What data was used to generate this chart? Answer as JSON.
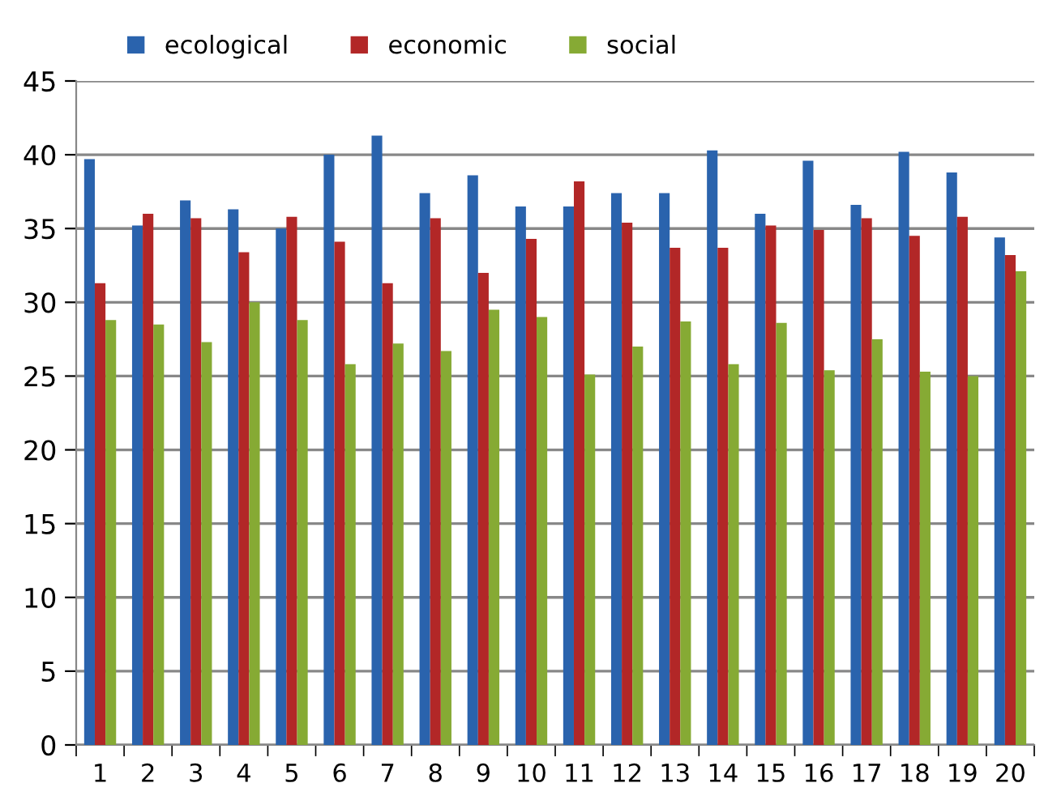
{
  "chart_data": {
    "type": "bar",
    "categories": [
      "1",
      "2",
      "3",
      "4",
      "5",
      "6",
      "7",
      "8",
      "9",
      "10",
      "11",
      "12",
      "13",
      "14",
      "15",
      "16",
      "17",
      "18",
      "19",
      "20"
    ],
    "series": [
      {
        "name": "ecological",
        "color": "#2a63ad",
        "values": [
          39.7,
          35.2,
          36.9,
          36.3,
          35.0,
          40.0,
          41.3,
          37.4,
          38.6,
          36.5,
          36.5,
          37.4,
          37.4,
          40.3,
          36.0,
          39.6,
          36.6,
          40.2,
          38.8,
          34.4
        ]
      },
      {
        "name": "economic",
        "color": "#b22727",
        "values": [
          31.3,
          36.0,
          35.7,
          33.4,
          35.8,
          34.1,
          31.3,
          35.7,
          32.0,
          34.3,
          38.2,
          35.4,
          33.7,
          33.7,
          35.2,
          34.9,
          35.7,
          34.5,
          35.8,
          33.2
        ]
      },
      {
        "name": "social",
        "color": "#86aa34",
        "values": [
          28.8,
          28.5,
          27.3,
          30.0,
          28.8,
          25.8,
          27.2,
          26.7,
          29.5,
          29.0,
          25.1,
          27.0,
          28.7,
          25.8,
          28.6,
          25.4,
          27.5,
          25.3,
          25.0,
          32.1
        ]
      }
    ],
    "ylim": [
      0,
      45
    ],
    "yticks": [
      0,
      5,
      10,
      15,
      20,
      25,
      30,
      35,
      40,
      45
    ],
    "grid": "y",
    "legend": "top left"
  }
}
